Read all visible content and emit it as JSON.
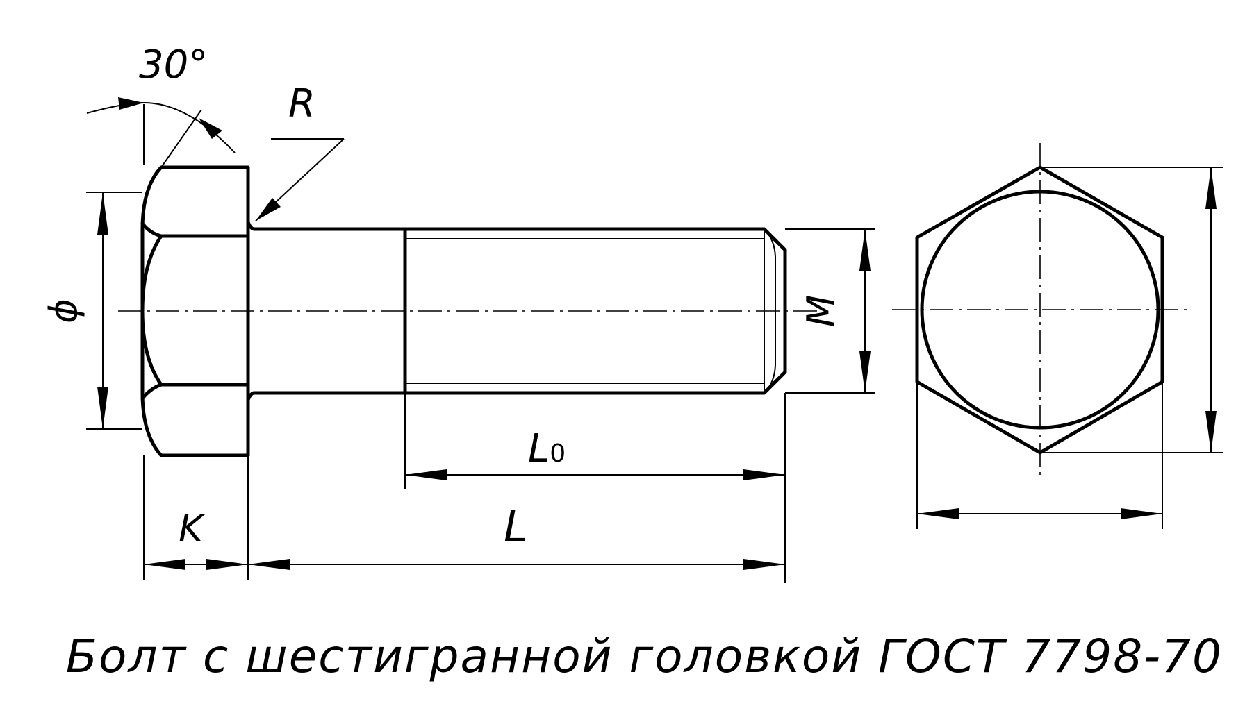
{
  "labels": {
    "angle": "30°",
    "radius": "R",
    "diameter": "ϕ",
    "thread": "M",
    "thread_length": "L",
    "thread_length_sub": "0",
    "length": "L",
    "head_height": "K"
  },
  "caption": "Болт с шестигранной головкой ГОСТ 7798-70"
}
